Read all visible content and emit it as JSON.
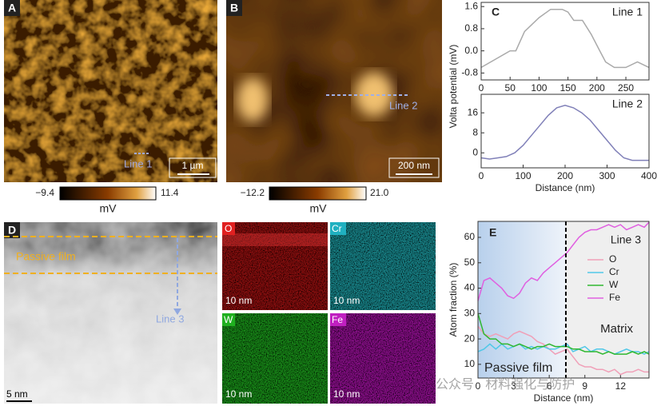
{
  "panels": {
    "A": {
      "label": "A",
      "line": "Line 1",
      "scale": "1 µm",
      "cbar_min": "−9.4",
      "cbar_max": "11.4",
      "cbar_unit": "mV"
    },
    "B": {
      "label": "B",
      "line": "Line 2",
      "scale": "200 nm",
      "cbar_min": "−12.2",
      "cbar_max": "21.0",
      "cbar_unit": "mV"
    },
    "C": {
      "label": "C"
    },
    "D": {
      "label": "D",
      "film": "Passive film",
      "line": "Line 3",
      "scale": "5 nm",
      "maps": [
        {
          "element": "O",
          "scale": "10 nm"
        },
        {
          "element": "Cr",
          "scale": "10 nm"
        },
        {
          "element": "W",
          "scale": "10 nm"
        },
        {
          "element": "Fe",
          "scale": "10 nm"
        }
      ]
    },
    "E": {
      "label": "E"
    },
    "watermark": "公众号 · 材料强化与防护"
  },
  "chart_data": [
    {
      "type": "line",
      "annotation": "Line 1",
      "ylabel": "Volta potential (mV)",
      "xlim": [
        0,
        290
      ],
      "ylim": [
        -1.05,
        1.75
      ],
      "xticks": [
        0,
        50,
        100,
        150,
        200,
        250
      ],
      "yticks": [
        -0.8,
        {
          "value": 0,
          "label": "0.0"
        },
        0.8,
        1.6
      ],
      "x": [
        0,
        25,
        50,
        60,
        75,
        100,
        120,
        140,
        150,
        160,
        175,
        190,
        205,
        215,
        230,
        250,
        270,
        290
      ],
      "series": [
        {
          "color": "#aaaaaa",
          "values": [
            -0.6,
            -0.3,
            0,
            0,
            0.7,
            1.2,
            1.5,
            1.5,
            1.4,
            1.1,
            1.1,
            0.6,
            0,
            -0.4,
            -0.6,
            -0.6,
            -0.4,
            -0.6
          ]
        }
      ]
    },
    {
      "type": "line",
      "annotation": "Line 2",
      "xlabel": "Distance (nm)",
      "xlim": [
        0,
        400
      ],
      "ylim": [
        -6,
        23.4
      ],
      "xticks": [
        0,
        100,
        200,
        300,
        400
      ],
      "yticks": [
        0,
        8,
        16
      ],
      "x": [
        0,
        20,
        40,
        60,
        80,
        100,
        120,
        140,
        160,
        180,
        200,
        220,
        240,
        260,
        280,
        300,
        320,
        340,
        360,
        380,
        400
      ],
      "series": [
        {
          "color": "#8080b8",
          "values": [
            -2,
            -2.5,
            -2,
            -1.5,
            0,
            3,
            7,
            11,
            15,
            18,
            19,
            18,
            16,
            13,
            9,
            5,
            1,
            -2,
            -3,
            -3,
            -3
          ]
        }
      ]
    },
    {
      "type": "line",
      "annotation": "Line 3",
      "annotations": [
        "Passive film",
        "Matrix"
      ],
      "boundary": 7.4,
      "xlabel": "Distance (nm)",
      "ylabel": "Atom fraction (%)",
      "xlim": [
        0,
        14.4
      ],
      "ylim": [
        4.6,
        66.3
      ],
      "xticks": [
        0,
        3,
        6,
        9,
        12
      ],
      "yticks": [
        10,
        20,
        30,
        40,
        50,
        60
      ],
      "x": [
        0,
        0.5,
        1,
        1.5,
        2,
        2.5,
        3,
        3.5,
        4,
        4.5,
        5,
        5.5,
        6,
        6.5,
        7,
        7.5,
        8,
        8.5,
        9,
        9.5,
        10,
        10.5,
        11,
        11.5,
        12,
        12.5,
        13,
        13.5,
        14,
        14.4
      ],
      "series": [
        {
          "name": "O",
          "color": "#f0a0b8",
          "values": [
            25,
            22,
            21,
            22,
            21,
            20,
            22,
            23,
            22,
            21,
            19,
            18,
            16,
            14,
            15,
            16,
            13,
            10,
            9,
            9,
            8,
            8,
            7,
            8,
            6,
            7,
            7,
            8,
            7,
            7
          ]
        },
        {
          "name": "Cr",
          "color": "#50c8e8",
          "values": [
            15,
            16,
            18,
            16,
            18,
            16,
            17,
            18,
            16,
            17,
            16,
            17,
            16,
            16,
            17,
            18,
            15,
            16,
            17,
            15,
            16,
            16,
            15,
            14,
            15,
            16,
            15,
            15,
            14,
            15
          ]
        },
        {
          "name": "W",
          "color": "#30b830",
          "values": [
            30,
            22,
            20,
            20,
            18,
            18,
            17,
            18,
            17,
            16,
            17,
            17,
            18,
            17,
            17,
            17,
            16,
            16,
            15,
            15,
            15,
            14,
            15,
            14,
            14,
            14,
            15,
            14,
            15,
            14
          ]
        },
        {
          "name": "Fe",
          "color": "#e060e0",
          "values": [
            35,
            43,
            44,
            42,
            40,
            37,
            36,
            38,
            42,
            44,
            43,
            46,
            48,
            50,
            52,
            54,
            57,
            60,
            62,
            63,
            63,
            64,
            65,
            64,
            65,
            63,
            64,
            65,
            64,
            66
          ]
        }
      ]
    }
  ]
}
